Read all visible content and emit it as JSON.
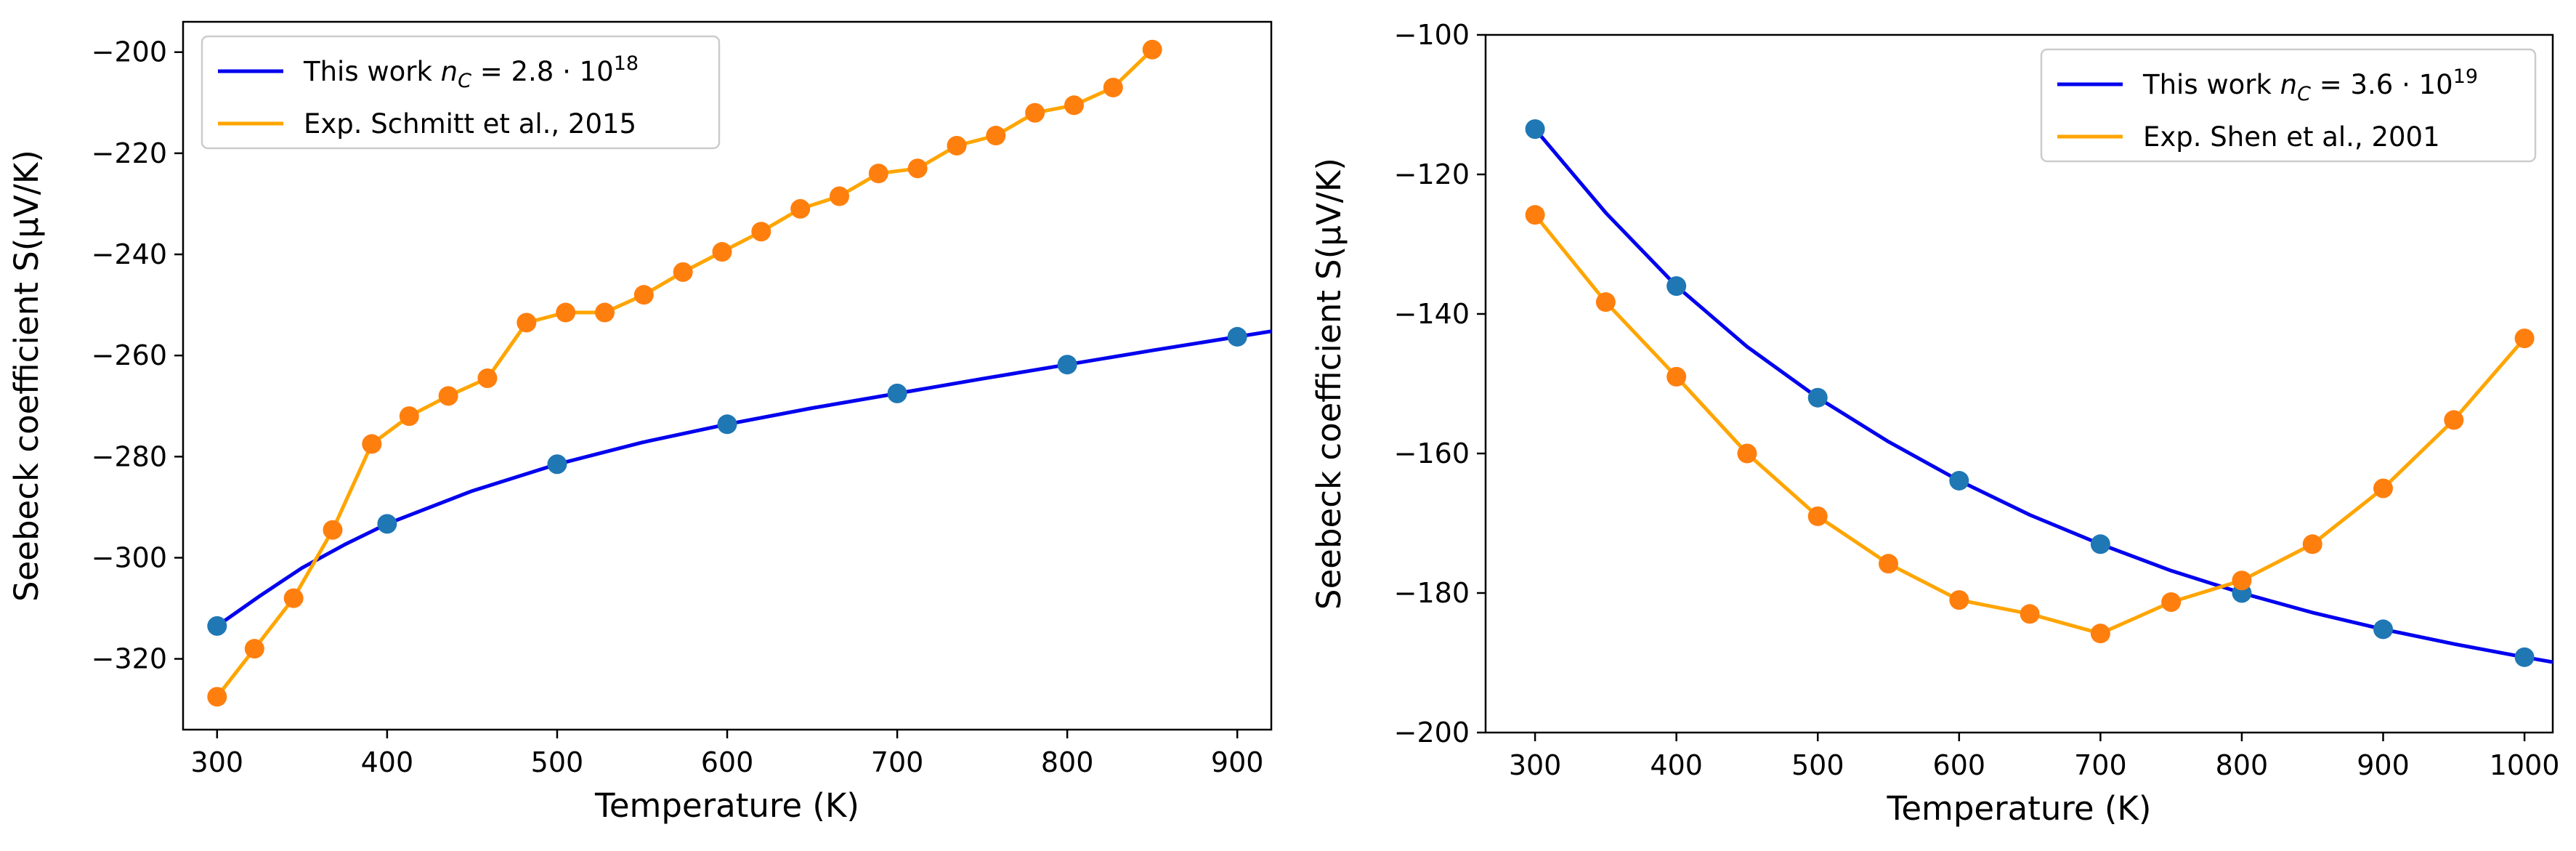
{
  "chart_data": [
    {
      "type": "line",
      "title": "",
      "xlabel": "Temperature (K)",
      "ylabel": "Seebeck coefficient S(μV/K)",
      "xlim": [
        280,
        920
      ],
      "ylim": [
        -334,
        -194
      ],
      "xticks": [
        300,
        400,
        500,
        600,
        700,
        800,
        900
      ],
      "yticks": [
        -320,
        -300,
        -280,
        -260,
        -240,
        -220,
        -200
      ],
      "xtick_labels": [
        "300",
        "400",
        "500",
        "600",
        "700",
        "800",
        "900"
      ],
      "ytick_labels": [
        "−320",
        "−300",
        "−280",
        "−260",
        "−240",
        "−220",
        "−200"
      ],
      "grid": false,
      "legend_position": "upper-left",
      "series": [
        {
          "name": "This work n_C = 2.8·10^18",
          "legend_prefix": "This work",
          "legend_var": "n",
          "legend_sub": "C",
          "legend_eq": " = 2.8 · 10",
          "legend_sup": "18",
          "line_color": "#0000ee",
          "marker_color": "#1f77b4",
          "line": {
            "x": [
              300,
              325,
              350,
              375,
              400,
              450,
              500,
              550,
              600,
              650,
              700,
              750,
              800,
              850,
              900,
              920
            ],
            "y": [
              -313.5,
              -307.6,
              -302.0,
              -297.4,
              -293.3,
              -286.8,
              -281.5,
              -277.2,
              -273.6,
              -270.4,
              -267.5,
              -264.6,
              -261.8,
              -259.0,
              -256.3,
              -255.2
            ]
          },
          "markers": {
            "x": [
              300,
              400,
              500,
              600,
              700,
              800,
              900
            ],
            "y": [
              -313.5,
              -293.3,
              -281.5,
              -273.6,
              -267.5,
              -261.8,
              -256.3
            ]
          }
        },
        {
          "name": "Exp. Schmitt et al., 2015",
          "legend_prefix": "Exp. Schmitt et al., 2015",
          "line_color": "#ffa500",
          "marker_color": "#ff7f0e",
          "line": {
            "x": [
              300,
              322,
              345,
              368,
              391,
              413,
              436,
              459,
              482,
              505,
              528,
              551,
              574,
              597,
              620,
              643,
              666,
              689,
              712,
              735,
              758,
              781,
              804,
              827,
              850
            ],
            "y": [
              -327.5,
              -318,
              -308,
              -294.5,
              -277.5,
              -272,
              -268,
              -264.5,
              -253.5,
              -251.5,
              -251.5,
              -248,
              -243.5,
              -239.5,
              -235.5,
              -231,
              -228.5,
              -224,
              -223,
              -218.5,
              -216.5,
              -212,
              -210.5,
              -207,
              -199.5
            ]
          },
          "markers": {
            "x": [
              300,
              322,
              345,
              368,
              391,
              413,
              436,
              459,
              482,
              505,
              528,
              551,
              574,
              597,
              620,
              643,
              666,
              689,
              712,
              735,
              758,
              781,
              804,
              827,
              850
            ],
            "y": [
              -327.5,
              -318,
              -308,
              -294.5,
              -277.5,
              -272,
              -268,
              -264.5,
              -253.5,
              -251.5,
              -251.5,
              -248,
              -243.5,
              -239.5,
              -235.5,
              -231,
              -228.5,
              -224,
              -223,
              -218.5,
              -216.5,
              -212,
              -210.5,
              -207,
              -199.5
            ]
          }
        }
      ]
    },
    {
      "type": "line",
      "title": "",
      "xlabel": "Temperature (K)",
      "ylabel": "Seebeck coefficient S(μV/K)",
      "xlim": [
        265,
        1020
      ],
      "ylim": [
        -200,
        -100
      ],
      "xticks": [
        300,
        400,
        500,
        600,
        700,
        800,
        900,
        1000
      ],
      "yticks": [
        -200,
        -180,
        -160,
        -140,
        -120,
        -100
      ],
      "xtick_labels": [
        "300",
        "400",
        "500",
        "600",
        "700",
        "800",
        "900",
        "1000"
      ],
      "ytick_labels": [
        "−200",
        "−180",
        "−160",
        "−140",
        "−120",
        "−100"
      ],
      "grid": false,
      "legend_position": "upper-right",
      "series": [
        {
          "name": "This work n_C = 3.6·10^19",
          "legend_prefix": "This work",
          "legend_var": "n",
          "legend_sub": "C",
          "legend_eq": " = 3.6 · 10",
          "legend_sup": "19",
          "line_color": "#0000ee",
          "marker_color": "#1f77b4",
          "line": {
            "x": [
              300,
              350,
              400,
              450,
              500,
              550,
              600,
              650,
              700,
              750,
              800,
              850,
              900,
              950,
              1000,
              1020
            ],
            "y": [
              -113.5,
              -125.5,
              -136.0,
              -144.7,
              -152.0,
              -158.3,
              -163.9,
              -168.8,
              -173.0,
              -176.8,
              -180.0,
              -182.8,
              -185.2,
              -187.3,
              -189.2,
              -189.9
            ]
          },
          "markers": {
            "x": [
              300,
              400,
              500,
              600,
              700,
              800,
              900,
              1000
            ],
            "y": [
              -113.5,
              -136.0,
              -152.0,
              -163.9,
              -173.0,
              -180.0,
              -185.2,
              -189.2
            ]
          }
        },
        {
          "name": "Exp. Shen et al., 2001",
          "legend_prefix": "Exp. Shen et al., 2001",
          "line_color": "#ffa500",
          "marker_color": "#ff7f0e",
          "line": {
            "x": [
              300,
              350,
              400,
              450,
              500,
              550,
              600,
              650,
              700,
              750,
              800,
              850,
              900,
              950,
              1000
            ],
            "y": [
              -125.8,
              -138.3,
              -149.0,
              -160.0,
              -169.0,
              -175.8,
              -181.0,
              -183.0,
              -185.8,
              -181.3,
              -178.2,
              -173.0,
              -165.0,
              -155.2,
              -143.5
            ]
          },
          "markers": {
            "x": [
              300,
              350,
              400,
              450,
              500,
              550,
              600,
              650,
              700,
              750,
              800,
              850,
              900,
              950,
              1000
            ],
            "y": [
              -125.8,
              -138.3,
              -149.0,
              -160.0,
              -169.0,
              -175.8,
              -181.0,
              -183.0,
              -185.8,
              -181.3,
              -178.2,
              -173.0,
              -165.0,
              -155.2,
              -143.5
            ]
          }
        }
      ]
    }
  ]
}
